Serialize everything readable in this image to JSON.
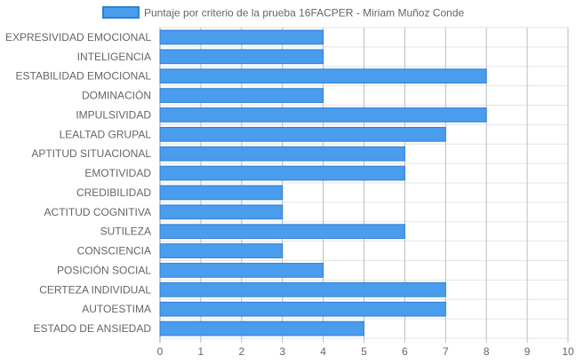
{
  "chart_data": {
    "type": "bar",
    "orientation": "horizontal",
    "legend": {
      "label": "Puntaje por criterio de la prueba 16FACPER - Miriam Muñoz Conde",
      "placement": "top-center"
    },
    "categories": [
      "EXPRESIVIDAD EMOCIONAL",
      "INTELIGENCIA",
      "ESTABILIDAD EMOCIONAL",
      "DOMINACIÓN",
      "IMPULSIVIDAD",
      "LEALTAD GRUPAL",
      "APTITUD SITUACIONAL",
      "EMOTIVIDAD",
      "CREDIBILIDAD",
      "ACTITUD COGNITIVA",
      "SUTILEZA",
      "CONSCIENCIA",
      "POSICIÓN SOCIAL",
      "CERTEZA INDIVIDUAL",
      "AUTOESTIMA",
      "ESTADO DE ANSIEDAD"
    ],
    "values": [
      4,
      4,
      8,
      4,
      8,
      7,
      6,
      6,
      3,
      3,
      6,
      3,
      4,
      7,
      7,
      5
    ],
    "xlim": [
      0,
      10
    ],
    "xticks": [
      "0",
      "1",
      "2",
      "3",
      "4",
      "5",
      "6",
      "7",
      "8",
      "9",
      "10"
    ],
    "grid": true,
    "bar_color": "#4a9cec",
    "bar_border_color": "#2f80d8",
    "grid_color": "#e5e5e5",
    "grid_major_color": "#bdbdbd"
  }
}
